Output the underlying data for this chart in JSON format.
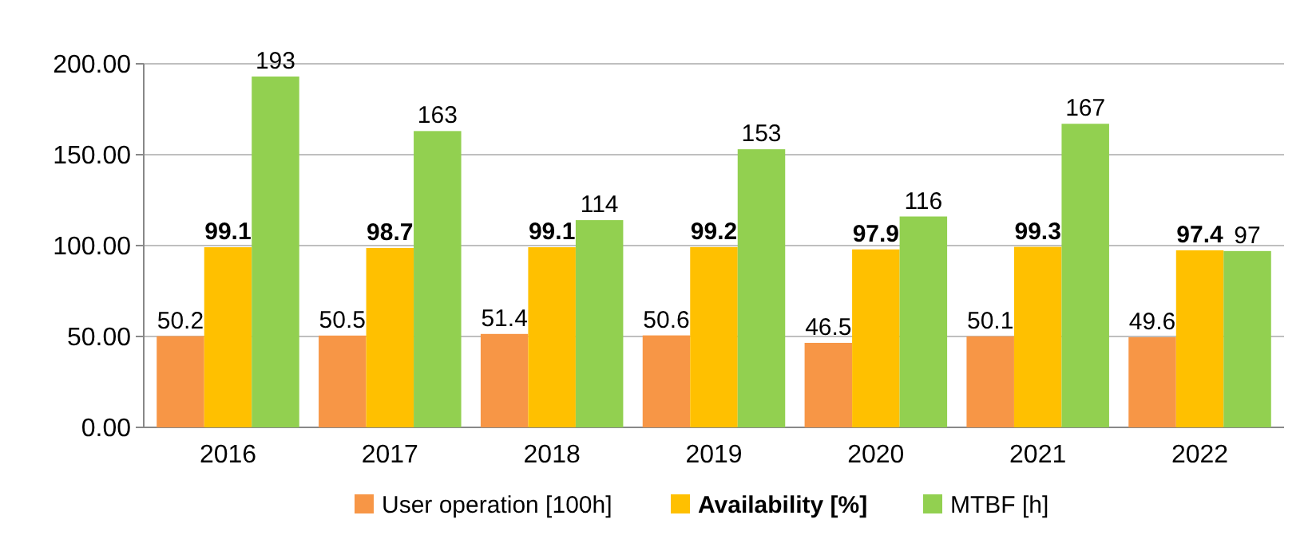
{
  "chart_data": {
    "type": "bar",
    "categories": [
      "2016",
      "2017",
      "2018",
      "2019",
      "2020",
      "2021",
      "2022"
    ],
    "series": [
      {
        "name": "User operation [100h]",
        "color": "#f79646",
        "values": [
          50.2,
          50.5,
          51.4,
          50.6,
          46.5,
          50.1,
          49.6
        ]
      },
      {
        "name": "Availability [%]",
        "color": "#ffc000",
        "values": [
          99.1,
          98.7,
          99.1,
          99.2,
          97.9,
          99.3,
          97.4
        ]
      },
      {
        "name": "MTBF [h]",
        "color": "#92d050",
        "values": [
          193,
          163,
          114,
          153,
          116,
          167,
          97
        ]
      }
    ],
    "ylim": [
      0,
      200
    ],
    "yticks": [
      {
        "value": 0,
        "label": "0.00"
      },
      {
        "value": 50,
        "label": "50.00"
      },
      {
        "value": 100,
        "label": "100.00"
      },
      {
        "value": 150,
        "label": "150.00"
      },
      {
        "value": 200,
        "label": "200.00"
      }
    ],
    "grid": "y",
    "legend": "bottom",
    "data_labels": true
  }
}
